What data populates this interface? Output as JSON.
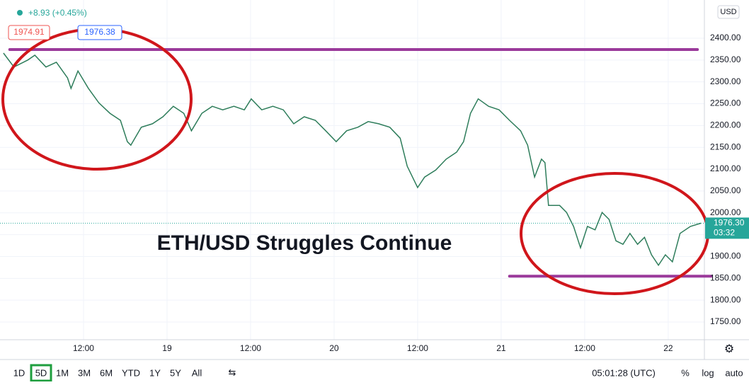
{
  "chart_data": {
    "type": "line",
    "annotation": "ETH/USD Struggles Continue",
    "change": "+8.93 (+0.45%)",
    "bid": "1974.91",
    "ask": "1976.38",
    "currency": "USD",
    "last_price": {
      "value": 1976.3,
      "label": "1976.30"
    },
    "countdown": "03:32",
    "color": "#2e7d5b",
    "grid": true,
    "x": [
      0.5,
      2,
      4,
      5,
      6.6,
      8.1,
      9.7,
      10.2,
      11.2,
      12.7,
      14.2,
      15.8,
      17.3,
      18.3,
      18.8,
      20.3,
      21.9,
      23.4,
      24.9,
      26.4,
      27.5,
      29,
      30.5,
      32,
      33.6,
      35.1,
      36.1,
      37.6,
      39.2,
      40.7,
      42.2,
      43.7,
      45.3,
      46.8,
      48.3,
      49.8,
      51.4,
      52.9,
      54.4,
      56,
      57.5,
      58.5,
      60,
      61,
      62.6,
      64.1,
      65.6,
      66.6,
      67.6,
      68.7,
      70.2,
      71.7,
      73.2,
      74.8,
      75.8,
      76.8,
      77.8,
      78.3,
      78.8,
      80.4,
      81.4,
      82.4,
      83.4,
      84.4,
      85.5,
      86.5,
      87.5,
      88.5,
      89.5,
      90.5,
      91.6,
      92.6,
      93.6,
      94.6,
      95.6,
      96.6,
      97.7,
      99.2,
      100.7
    ],
    "values": [
      2366,
      2334,
      2350,
      2361,
      2334,
      2345,
      2309,
      2285,
      2325,
      2285,
      2252,
      2228,
      2212,
      2163,
      2155,
      2196,
      2204,
      2220,
      2244,
      2228,
      2188,
      2228,
      2244,
      2236,
      2244,
      2236,
      2261,
      2236,
      2244,
      2236,
      2204,
      2220,
      2212,
      2188,
      2163,
      2188,
      2196,
      2209,
      2204,
      2196,
      2171,
      2107,
      2058,
      2082,
      2098,
      2123,
      2139,
      2163,
      2228,
      2261,
      2244,
      2236,
      2212,
      2188,
      2155,
      2082,
      2123,
      2115,
      2017,
      2017,
      2001,
      1969,
      1920,
      1969,
      1961,
      2001,
      1985,
      1936,
      1928,
      1953,
      1928,
      1944,
      1904,
      1880,
      1904,
      1888,
      1953,
      1969,
      1976.3
    ],
    "hlines": [
      {
        "value": 2374,
        "x": [
          1.4,
          100.2
        ],
        "color": "#9b3a9b"
      },
      {
        "value": 1855,
        "x": [
          73.2,
          102.2
        ],
        "color": "#9b3a9b"
      }
    ],
    "xlim": [
      0,
      101.2
    ],
    "xticks": [
      {
        "value": 12,
        "label": "12:00"
      },
      {
        "value": 24,
        "label": "19"
      },
      {
        "value": 36,
        "label": "12:00"
      },
      {
        "value": 48,
        "label": "20"
      },
      {
        "value": 60,
        "label": "12:00"
      },
      {
        "value": 72,
        "label": "21"
      },
      {
        "value": 84,
        "label": "12:00"
      },
      {
        "value": 96,
        "label": "22"
      }
    ],
    "ylim": [
      1709.5,
      2487.5
    ],
    "yticks": [
      {
        "value": 1750,
        "label": "1750.00"
      },
      {
        "value": 1800,
        "label": "1800.00"
      },
      {
        "value": 1850,
        "label": "1850.00"
      },
      {
        "value": 1900,
        "label": "1900.00"
      },
      {
        "value": 1950,
        "label": "1950.00"
      },
      {
        "value": 2000,
        "label": "2000.00"
      },
      {
        "value": 2050,
        "label": "2050.00"
      },
      {
        "value": 2100,
        "label": "2100.00"
      },
      {
        "value": 2150,
        "label": "2150.00"
      },
      {
        "value": 2200,
        "label": "2200.00"
      },
      {
        "value": 2250,
        "label": "2250.00"
      },
      {
        "value": 2300,
        "label": "2300.00"
      },
      {
        "value": 2350,
        "label": "2350.00"
      },
      {
        "value": 2400,
        "label": "2400.00"
      }
    ]
  },
  "toolbar": {
    "periods": [
      "1D",
      "5D",
      "1M",
      "3M",
      "6M",
      "YTD",
      "1Y",
      "5Y",
      "All"
    ],
    "active": "5D",
    "time": "05:01:28 (UTC)",
    "options": [
      "%",
      "log",
      "auto"
    ]
  }
}
